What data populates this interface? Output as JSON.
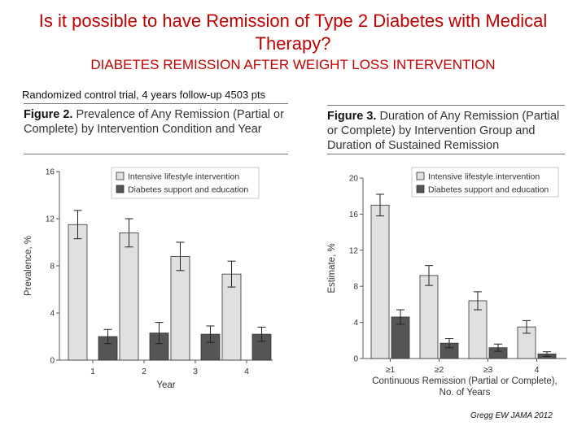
{
  "slide": {
    "title": "Is it possible to have Remission of Type 2 Diabetes with Medical Therapy?",
    "subtitle": "DIABETES REMISSION AFTER WEIGHT LOSS INTERVENTION",
    "trial_note": "Randomized control trial, 4 years follow-up 4503 pts",
    "source": "Gregg EW JAMA 2012"
  },
  "figure2": {
    "label": "Figure 2.",
    "caption": "Prevalence of Any Remission (Partial or Complete) by Intervention Condition and Year"
  },
  "figure3": {
    "label": "Figure 3.",
    "caption": "Duration of Any Remission (Partial or Complete) by Intervention Group and Duration of Sustained Remission"
  },
  "colors": {
    "title": "#c00000",
    "light_bar": "#e0e0e0",
    "dark_bar": "#555555"
  },
  "chart_data": [
    {
      "type": "bar",
      "title": "Prevalence of Any Remission (Partial or Complete) by Intervention Condition and Year",
      "xlabel": "Year",
      "ylabel": "Prevalence, %",
      "categories": [
        "1",
        "2",
        "3",
        "4"
      ],
      "yticks": [
        "0",
        "4",
        "8",
        "12",
        "16"
      ],
      "ylim": [
        0,
        16
      ],
      "series": [
        {
          "name": "Intensive lifestyle intervention",
          "values": [
            11.5,
            10.8,
            8.8,
            7.3
          ],
          "err": [
            1.2,
            1.2,
            1.2,
            1.1
          ]
        },
        {
          "name": "Diabetes support and education",
          "values": [
            2.0,
            2.3,
            2.2,
            2.2
          ],
          "err": [
            0.6,
            0.9,
            0.7,
            0.6
          ]
        }
      ]
    },
    {
      "type": "bar",
      "title": "Duration of Any Remission (Partial or Complete) by Intervention Group and Duration of Sustained Remission",
      "xlabel": "Continuous Remission (Partial or Complete), No. of Years",
      "ylabel": "Estimate, %",
      "categories": [
        "≥1",
        "≥2",
        "≥3",
        "4"
      ],
      "yticks": [
        "0",
        "4",
        "8",
        "12",
        "16",
        "20"
      ],
      "ylim": [
        0,
        20
      ],
      "series": [
        {
          "name": "Intensive lifestyle intervention",
          "values": [
            17.0,
            9.2,
            6.4,
            3.5
          ],
          "err": [
            1.2,
            1.1,
            1.0,
            0.7
          ]
        },
        {
          "name": "Diabetes support and education",
          "values": [
            4.6,
            1.7,
            1.2,
            0.5
          ],
          "err": [
            0.8,
            0.5,
            0.4,
            0.25
          ]
        }
      ]
    }
  ]
}
